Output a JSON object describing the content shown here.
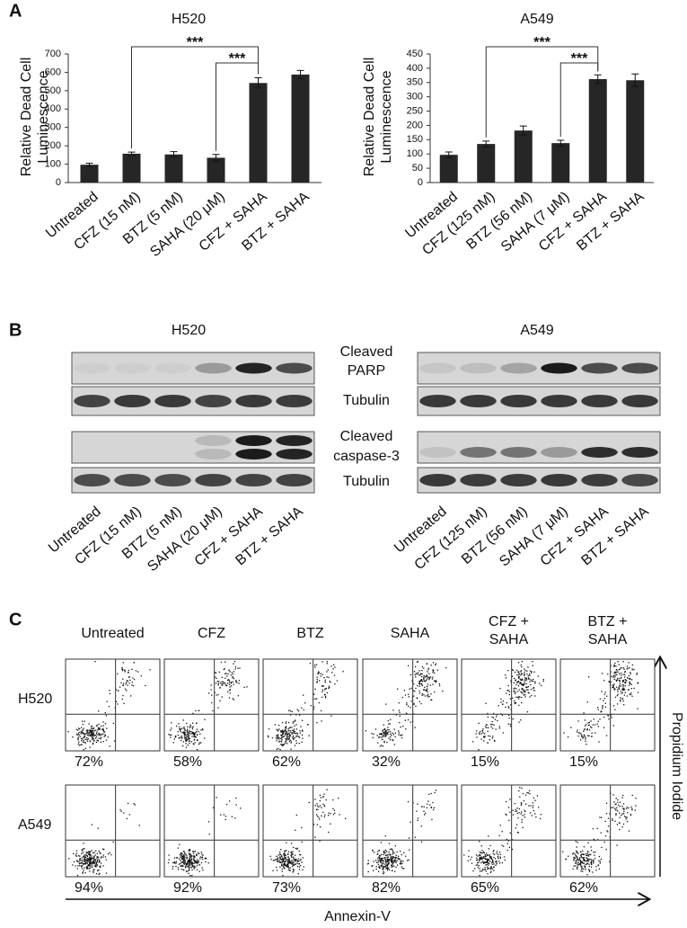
{
  "panel_labels": [
    "A",
    "B",
    "C"
  ],
  "chart_data": [
    {
      "type": "bar",
      "title": "H520",
      "ylabel": [
        "Relative Dead Cell",
        "Luminescence"
      ],
      "categories": [
        "Untreated",
        "CFZ (15 nM)",
        "BTZ (5 nM)",
        "SAHA (20 μM)",
        "CFZ + SAHA",
        "BTZ + SAHA"
      ],
      "values": [
        97,
        157,
        153,
        135,
        542,
        588
      ],
      "errors": [
        8,
        9,
        15,
        18,
        28,
        22
      ],
      "color": "#262626",
      "ylim": [
        0,
        700
      ],
      "yticks": [
        0,
        100,
        200,
        300,
        400,
        500,
        600,
        700
      ],
      "annotations": [
        "***",
        "***"
      ]
    },
    {
      "type": "bar",
      "title": "A549",
      "ylabel": [
        "Relative Dead Cell",
        "Luminescence"
      ],
      "categories": [
        "Untreated",
        "CFZ (125 nM)",
        "BTZ (56 nM)",
        "SAHA (7 μM)",
        "CFZ + SAHA",
        "BTZ + SAHA"
      ],
      "values": [
        97,
        135,
        182,
        138,
        362,
        358
      ],
      "errors": [
        10,
        10,
        16,
        10,
        15,
        22
      ],
      "color": "#262626",
      "ylim": [
        0,
        450
      ],
      "yticks": [
        0,
        50,
        100,
        150,
        200,
        250,
        300,
        350,
        400,
        450
      ],
      "annotations": [
        "***",
        "***"
      ]
    }
  ],
  "blots": {
    "titles": [
      "H520",
      "A549"
    ],
    "row_labels": [
      [
        "Cleaved",
        "PARP"
      ],
      [
        "Tubulin"
      ],
      [
        "Cleaved",
        "caspase-3"
      ],
      [
        "Tubulin"
      ]
    ],
    "lanes": [
      [
        "Untreated",
        "CFZ (15 nM)",
        "BTZ (5 nM)",
        "SAHA (20 μM)",
        "CFZ + SAHA",
        "BTZ + SAHA"
      ],
      [
        "Untreated",
        "CFZ (125 nM)",
        "BTZ (56 nM)",
        "SAHA (7 μM)",
        "CFZ + SAHA",
        "BTZ + SAHA"
      ]
    ]
  },
  "flow": {
    "columns": [
      [
        "Untreated"
      ],
      [
        "CFZ"
      ],
      [
        "BTZ"
      ],
      [
        "SAHA"
      ],
      [
        "CFZ +",
        "SAHA"
      ],
      [
        "BTZ +",
        "SAHA"
      ]
    ],
    "rows": [
      {
        "label": "H520",
        "percents": [
          "72%",
          "58%",
          "62%",
          "32%",
          "15%",
          "15%"
        ]
      },
      {
        "label": "A549",
        "percents": [
          "94%",
          "92%",
          "73%",
          "82%",
          "65%",
          "62%"
        ]
      }
    ],
    "x_axis": "Annexin-V",
    "y_axis": "Propidium Iodide"
  }
}
